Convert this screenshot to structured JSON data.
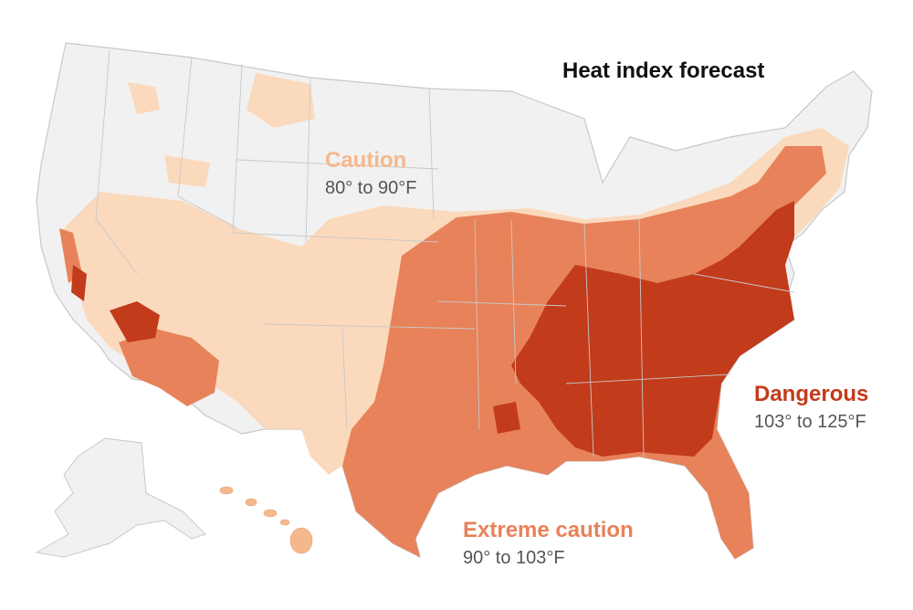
{
  "title": "Heat index forecast",
  "legend": {
    "caution": {
      "label": "Caution",
      "range": "80° to 90°F",
      "color": "#f5b88c"
    },
    "extreme_caution": {
      "label": "Extreme caution",
      "range": "90° to 103°F",
      "color": "#e8825a"
    },
    "dangerous": {
      "label": "Dangerous",
      "range": "103° to 125°F",
      "color": "#c23b1a"
    }
  },
  "colors": {
    "land": "#f1f1f1",
    "border": "#cccccc",
    "caution_fill": "#fbd9bd",
    "extreme_fill": "#e8825a",
    "danger_fill": "#c23b1a",
    "range_text": "#555555",
    "title_text": "#111111"
  }
}
